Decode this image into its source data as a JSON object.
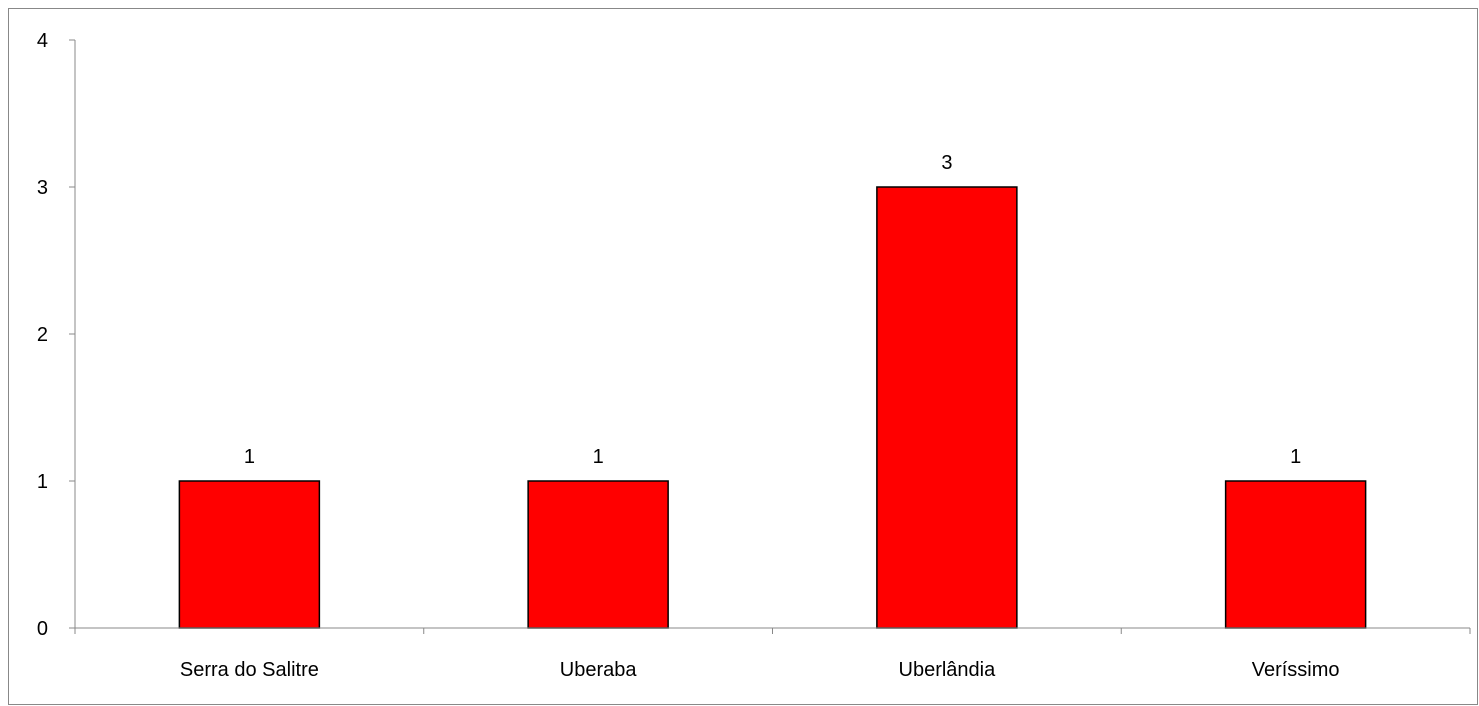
{
  "chart_data": {
    "type": "bar",
    "categories": [
      "Serra do Salitre",
      "Uberaba",
      "Uberlândia",
      "Veríssimo"
    ],
    "values": [
      1,
      1,
      3,
      1
    ],
    "data_labels": [
      "1",
      "1",
      "3",
      "1"
    ],
    "y_ticks": [
      "0",
      "1",
      "2",
      "3",
      "4"
    ],
    "ylim": [
      0,
      4
    ],
    "grid": false,
    "legend": "none",
    "bar_color": "#ff0000",
    "bar_edge_color": "#000000",
    "axis_color": "#888888"
  }
}
